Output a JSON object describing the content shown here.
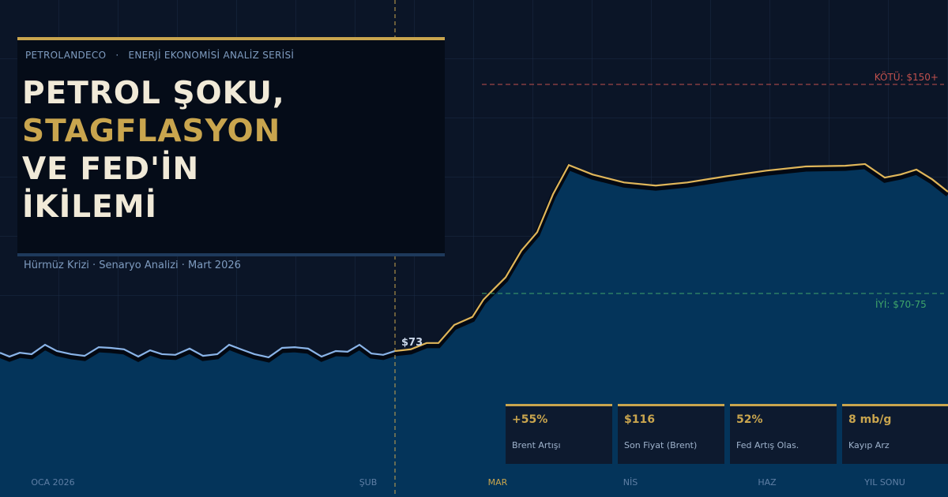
{
  "brand": [
    "PETROLANDECO",
    "·",
    "ENERJİ EKONOMİSİ ANALİZ SERİSİ"
  ],
  "title_lines": [
    "PETROL ŞOKU,",
    "STAGFLASYON",
    "VE FED'İN",
    "İKİLEMİ"
  ],
  "subtitle": "Hürmüz Krizi · Senaryo Analizi · Mart 2026",
  "stats": [
    {
      "value": "+55%",
      "label": "Brent Artışı"
    },
    {
      "value": "$116",
      "label": "Son Fiyat (Brent)"
    },
    {
      "value": "52%",
      "label": "Fed Artış Olas."
    },
    {
      "value": "8 mb/g",
      "label": "Kayıp Arz"
    }
  ],
  "chart_data": {
    "type": "area",
    "xlim": [
      0,
      120
    ],
    "ylim": [
      31,
      174
    ],
    "xticks": [
      {
        "value": 6.7,
        "label": "OCA 2026"
      },
      {
        "value": 46.6,
        "label": "ŞUB"
      },
      {
        "value": 63,
        "label": "MAR"
      },
      {
        "value": 79.8,
        "label": "NİS"
      },
      {
        "value": 97.1,
        "label": "HAZ"
      },
      {
        "value": 112,
        "label": "YIL SONU"
      }
    ],
    "annotations": [
      {
        "text": "KÖTÜ: $150+",
        "color": "#c0504d"
      },
      {
        "text": "İYİ: $70-75",
        "color": "#3fa46a"
      },
      {
        "text": "$73",
        "color": "#c9d6e8"
      }
    ],
    "series": [
      {
        "color": "#8ab4e8",
        "x": [
          0,
          1.2,
          2.5,
          4,
          5.7,
          7.2,
          9,
          10.7,
          12.5,
          14,
          15.7,
          17.5,
          19,
          20.5,
          22.2,
          24,
          25.7,
          27.5,
          29,
          30.5,
          32.2,
          34,
          35.7,
          37.3,
          39,
          40.7,
          42.5,
          44,
          45.5,
          47,
          48.5,
          50
        ],
        "values": [
          72.5,
          71.4,
          72.5,
          72.1,
          74.8,
          73,
          72.1,
          71.6,
          74.1,
          73.9,
          73.5,
          71.4,
          73.2,
          72.1,
          71.9,
          73.7,
          71.6,
          72.1,
          74.8,
          73.5,
          72.1,
          71.2,
          73.9,
          74.1,
          73.7,
          71.4,
          73,
          72.8,
          74.8,
          72.3,
          71.9,
          73
        ]
      },
      {
        "color": "#e0b65a",
        "x": [
          50,
          52,
          54,
          55.5,
          57.5,
          59.8,
          61.2,
          62.5,
          64,
          66,
          68,
          70,
          72,
          75,
          79,
          83,
          87,
          92,
          97,
          102,
          107,
          109.5,
          112,
          114,
          116,
          118,
          120
        ],
        "values": [
          73,
          73.5,
          75.3,
          75.3,
          80.5,
          82.8,
          87.8,
          90.8,
          94.2,
          101.9,
          107.2,
          118.1,
          126.5,
          123.8,
          121.5,
          120.6,
          121.5,
          123.3,
          124.9,
          126.1,
          126.3,
          126.8,
          122.9,
          123.8,
          125.2,
          122.4,
          118.8
        ]
      }
    ]
  }
}
